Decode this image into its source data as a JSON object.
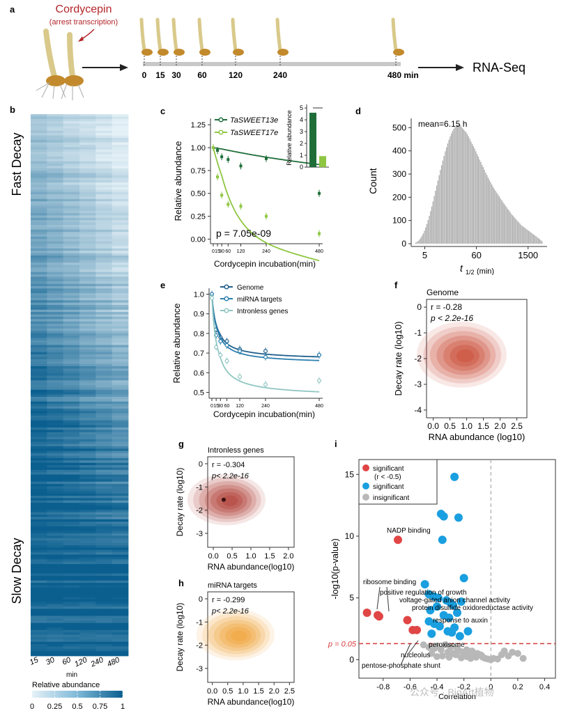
{
  "panel_a": {
    "letter": "a",
    "drug": "Cordycepin",
    "drug_note": "(arrest transcription)",
    "timepoints": [
      "0",
      "15",
      "30",
      "60",
      "120",
      "240",
      "480 min"
    ],
    "output": "RNA-Seq"
  },
  "panel_b": {
    "letter": "b",
    "top_label": "Fast Decay",
    "bottom_label": "Slow Decay",
    "timepoints": [
      "15",
      "30",
      "60",
      "120",
      "240",
      "480"
    ],
    "x_unit": "min",
    "colorbar_title": "Relative abundance",
    "colorbar_ticks": [
      "0",
      "0.25",
      "0.5",
      "0.75",
      "1"
    ],
    "colors": {
      "low": "#deedf5",
      "high": "#0a5f8f"
    }
  },
  "panel_c": {
    "letter": "c",
    "pvalue": "p = 7.05e-09",
    "inset_ylabel": "Relative abundance",
    "inset_sig": "***",
    "chart_data": {
      "type": "line",
      "xlabel": "Cordycepin incubation(min)",
      "ylabel": "Relative abundance",
      "xticks": [
        "0",
        "15",
        "30",
        "60",
        "120",
        "240",
        "480"
      ],
      "yticks": [
        "0.00",
        "0.25",
        "0.50",
        "0.75",
        "1.00",
        "1.25"
      ],
      "xlim": [
        -20,
        500
      ],
      "ylim": [
        -0.05,
        1.32
      ],
      "series": [
        {
          "name": "TaSWEET13e",
          "color": "#1f6e3a",
          "x": [
            0,
            15,
            30,
            60,
            120,
            240,
            480
          ],
          "y": [
            1.0,
            0.97,
            0.9,
            0.87,
            0.8,
            0.88,
            0.5
          ]
        },
        {
          "name": "TaSWEET17e",
          "color": "#8ec641",
          "x": [
            0,
            15,
            30,
            60,
            120,
            240,
            480
          ],
          "y": [
            1.0,
            0.68,
            0.48,
            0.38,
            0.36,
            0.25,
            0.06
          ]
        }
      ],
      "inset": {
        "yticks": [
          "0",
          "1",
          "2",
          "3",
          "4",
          "5"
        ],
        "ylim": [
          0,
          5.3
        ],
        "values": [
          4.6,
          0.93
        ]
      }
    }
  },
  "panel_d": {
    "letter": "d",
    "annotation": "mean=6.15 h",
    "chart_data": {
      "type": "bar",
      "xlabel": "t",
      "xlabel_sub": "1/2",
      "xlabel_unit": "(min)",
      "ylabel": "Count",
      "xticks": [
        "5",
        "60",
        "1500"
      ],
      "yticks": [
        "0",
        "100",
        "200",
        "300",
        "400",
        "500"
      ],
      "ylim": [
        0,
        540
      ],
      "color": "#aaaaaa",
      "values": [
        5,
        8,
        12,
        18,
        25,
        34,
        44,
        56,
        70,
        85,
        102,
        120,
        140,
        160,
        182,
        205,
        228,
        250,
        272,
        295,
        318,
        338,
        358,
        378,
        398,
        415,
        432,
        448,
        462,
        475,
        486,
        495,
        502,
        508,
        512,
        514,
        512,
        505,
        498,
        492,
        486,
        480,
        472,
        462,
        452,
        440,
        430,
        420,
        410,
        398,
        386,
        375,
        363,
        352,
        340,
        330,
        318,
        306,
        296,
        285,
        275,
        265,
        255,
        245,
        236,
        228,
        220,
        212,
        204,
        196,
        188,
        180,
        172,
        165,
        158,
        150,
        143,
        136,
        128,
        122,
        116,
        110,
        104,
        98,
        92,
        86,
        80,
        76,
        72,
        68,
        64,
        60,
        56,
        52,
        48,
        44,
        40,
        36,
        32,
        28,
        24,
        20,
        15,
        10
      ]
    }
  },
  "panel_e": {
    "letter": "e",
    "chart_data": {
      "type": "line",
      "xlabel": "Cordycepin incubation(min)",
      "ylabel": "Relative abundance",
      "xticks": [
        "0",
        "15",
        "30",
        "60",
        "120",
        "240",
        "480"
      ],
      "yticks": [
        "0.5",
        "0.6",
        "0.7",
        "0.8",
        "0.9",
        "1.0"
      ],
      "xlim": [
        -20,
        500
      ],
      "ylim": [
        0.47,
        1.03
      ],
      "series": [
        {
          "name": "Genome",
          "color": "#1f5f8c",
          "x": [
            0,
            15,
            30,
            60,
            120,
            240,
            480
          ],
          "y": [
            1.0,
            0.82,
            0.78,
            0.76,
            0.72,
            0.71,
            0.69
          ]
        },
        {
          "name": "miRNA targets",
          "color": "#2b7fae",
          "x": [
            0,
            15,
            30,
            60,
            120,
            240,
            480
          ],
          "y": [
            1.0,
            0.79,
            0.76,
            0.74,
            0.71,
            0.68,
            0.69
          ]
        },
        {
          "name": "Intronless genes",
          "color": "#8fc6c2",
          "x": [
            0,
            15,
            30,
            60,
            120,
            240,
            480
          ],
          "y": [
            0.98,
            0.73,
            0.69,
            0.66,
            0.58,
            0.54,
            0.56
          ]
        }
      ]
    }
  },
  "panel_f": {
    "letter": "f",
    "subtitle": "Genome",
    "r": "r = -0.28",
    "p": "p < 2.2e-16",
    "chart_data": {
      "type": "heatmap",
      "xlabel": "RNA abundance (log10)",
      "ylabel": "Decay rate (log10)",
      "xticks": [
        "0.0",
        "0.5",
        "1.0",
        "1.5",
        "2.0",
        "2.5"
      ],
      "yticks": [
        "0",
        "-1",
        "-2",
        "-3",
        "-4"
      ],
      "xlim": [
        -0.2,
        2.8
      ],
      "ylim": [
        -4.3,
        0.3
      ],
      "center": [
        0.85,
        -1.85
      ],
      "color": "#c8442f"
    }
  },
  "panel_g": {
    "letter": "g",
    "subtitle": "Intronless genes",
    "r": "r = -0.304",
    "p": "p< 2.2e-16",
    "chart_data": {
      "type": "heatmap",
      "xlabel": "RNA abundance(log10)",
      "ylabel": "Decay rate (log10)",
      "xticks": [
        "0.0",
        "0.5",
        "1.0",
        "1.5",
        "2.0"
      ],
      "yticks": [
        "0",
        "-1",
        "-2",
        "-3"
      ],
      "xlim": [
        -0.15,
        2.15
      ],
      "ylim": [
        -3.6,
        0.3
      ],
      "center": [
        0.35,
        -1.55
      ],
      "color": "#b03a33"
    }
  },
  "panel_h": {
    "letter": "h",
    "subtitle": "miRNA targets",
    "r": "r = -0.299",
    "p": "p< 2.2e-16",
    "chart_data": {
      "type": "heatmap",
      "xlabel": "RNA abundance(log10)",
      "ylabel": "Decay rate (log10)",
      "xticks": [
        "0.0",
        "0.5",
        "1.0",
        "1.5",
        "2.0",
        "2.5"
      ],
      "yticks": [
        "0",
        "-1",
        "-2",
        "-3"
      ],
      "xlim": [
        -0.15,
        2.65
      ],
      "ylim": [
        -3.6,
        0.3
      ],
      "center": [
        0.75,
        -1.55
      ],
      "color": "#f0a032"
    }
  },
  "panel_i": {
    "letter": "i",
    "threshold_label": "p = 0.05",
    "legend": [
      {
        "label": "significant",
        "sub": "(r < -0.5)",
        "color": "#e04646"
      },
      {
        "label": "significant",
        "sub": "",
        "color": "#1a9fe0"
      },
      {
        "label": "insignificant",
        "sub": "",
        "color": "#b8b8b8"
      }
    ],
    "annotations": {
      "nadp": "NADP binding",
      "ribosome": "ribosome binding",
      "growth": "positive regulation of growth",
      "voltage": "voltage-gated anion channel activity",
      "disulfide": "protein disulfide oxidoreductase activity",
      "auxin": "response to auxin",
      "peroxisome": "peroxisome",
      "nucleolus": "nucleolus",
      "pentose": "pentose-phosphate shunt"
    },
    "chart_data": {
      "type": "scatter",
      "xlabel": "Correlation",
      "ylabel": "-log10(p-value)",
      "xticks": [
        "-0.8",
        "-0.6",
        "-0.4",
        "-0.2",
        "0",
        "0.2",
        "0.4"
      ],
      "yticks": [
        "0",
        "5",
        "10",
        "15"
      ],
      "xlim": [
        -0.98,
        0.48
      ],
      "ylim": [
        -1.5,
        16.2
      ],
      "threshold": 1.3,
      "series": [
        {
          "name": "significant (r < -0.5)",
          "color": "#e04646",
          "x": [
            -0.69,
            -0.92,
            -0.84,
            -0.83,
            -0.62,
            -0.58,
            -0.55
          ],
          "y": [
            9.7,
            3.8,
            3.6,
            3.5,
            3.2,
            2.4,
            2.4
          ]
        },
        {
          "name": "significant",
          "color": "#1a9fe0",
          "x": [
            -0.27,
            -0.37,
            -0.35,
            -0.24,
            -0.36,
            -0.49,
            -0.46,
            -0.42,
            -0.39,
            -0.33,
            -0.3,
            -0.4,
            -0.45,
            -0.2,
            -0.22,
            -0.28,
            -0.25,
            -0.35,
            -0.31,
            -0.46,
            -0.42,
            -0.38,
            -0.27,
            -0.17,
            -0.32,
            -0.44,
            -0.23,
            -0.29
          ],
          "y": [
            14.8,
            11.8,
            11.6,
            11.5,
            9.7,
            6.1,
            5.3,
            5.1,
            5.0,
            4.8,
            4.6,
            4.3,
            4.0,
            6.6,
            4.7,
            4.4,
            3.8,
            3.6,
            3.4,
            3.1,
            2.9,
            2.7,
            2.6,
            2.3,
            2.3,
            2.1,
            1.9,
            2.2
          ]
        }
      ],
      "insignificant": {
        "color": "#b8b8b8",
        "x": [
          -0.5,
          -0.46,
          -0.42,
          -0.4,
          -0.37,
          -0.34,
          -0.32,
          -0.3,
          -0.28,
          -0.25,
          -0.23,
          -0.2,
          -0.18,
          -0.16,
          -0.14,
          -0.12,
          -0.1,
          -0.08,
          -0.06,
          -0.04,
          -0.02,
          0.0,
          0.02,
          0.05,
          0.08,
          0.1,
          0.13,
          0.16,
          0.2,
          0.24,
          -0.36,
          -0.31,
          -0.26,
          -0.22,
          -0.18,
          -0.15,
          -0.11,
          -0.07,
          -0.44,
          -0.4
        ],
        "y": [
          1.2,
          1.0,
          0.9,
          1.1,
          0.8,
          1.2,
          0.6,
          1.0,
          0.5,
          0.9,
          0.7,
          0.6,
          0.8,
          0.4,
          0.7,
          0.3,
          0.5,
          0.4,
          0.2,
          0.1,
          0.05,
          0.0,
          0.1,
          0.05,
          0.4,
          0.7,
          0.3,
          0.6,
          0.5,
          0.1,
          0.3,
          0.2,
          0.4,
          0.15,
          0.25,
          0.1,
          0.2,
          0.35,
          0.5,
          0.25
        ]
      }
    }
  },
  "watermark": "公众号 · BioArt植物"
}
